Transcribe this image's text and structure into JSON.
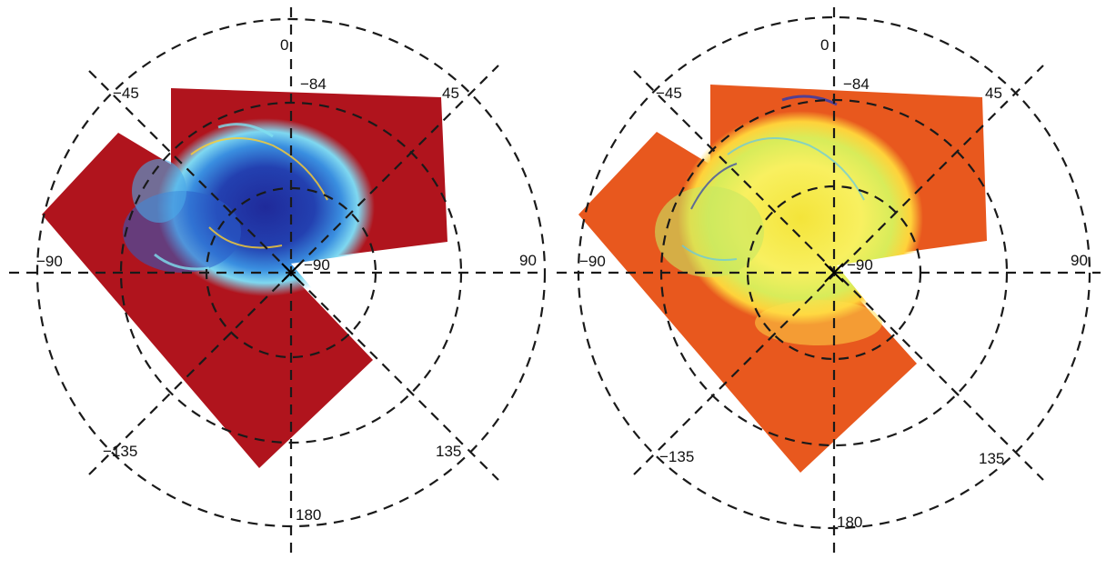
{
  "colors": {
    "background": "#ffffff",
    "grid": "#1a1a1a",
    "left_base": "#b0141d",
    "right_base": "#e8581e"
  },
  "panels": [
    {
      "id": "left",
      "colormap": "jet",
      "base_color": "#b0141d",
      "labels": {
        "lon_0": "0",
        "lon_45": "45",
        "lon_90": "90",
        "lon_135": "135",
        "lon_180": "180",
        "lon_m135": "−135",
        "lon_m90": "−90",
        "lon_m45": "−45",
        "lat_outer": "−84",
        "pole": "−90"
      }
    },
    {
      "id": "right",
      "colormap": "hot",
      "base_color": "#e8581e",
      "labels": {
        "lon_0": "0",
        "lon_45": "45",
        "lon_90": "90",
        "lon_135": "135",
        "lon_180": "180",
        "lon_m135": "−135",
        "lon_m90": "−90",
        "lon_m45": "−45",
        "lat_outer": "−84",
        "pole": "−90"
      }
    }
  ]
}
